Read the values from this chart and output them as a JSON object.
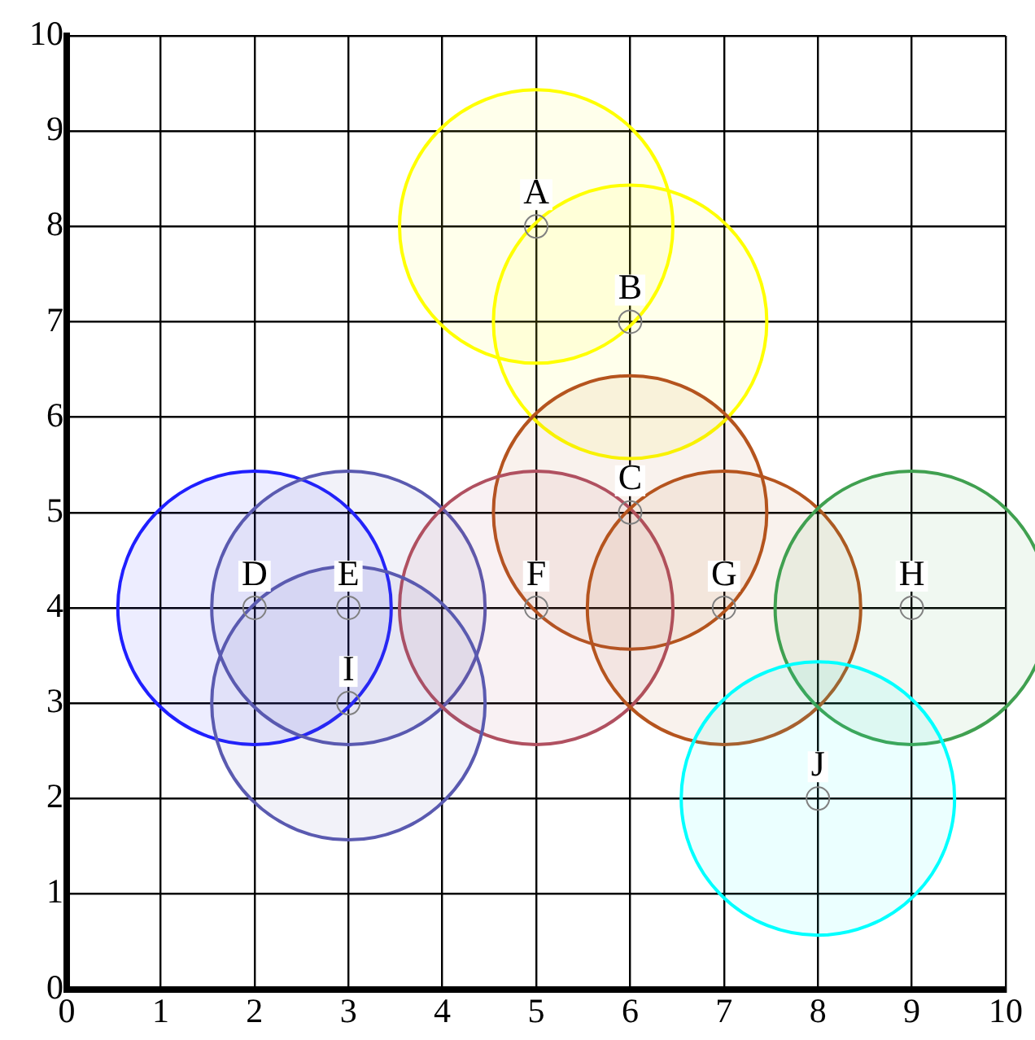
{
  "chart_data": {
    "type": "bubble",
    "xlim": [
      0,
      10
    ],
    "ylim": [
      0,
      10
    ],
    "xticks": [
      0,
      1,
      2,
      3,
      4,
      5,
      6,
      7,
      8,
      9,
      10
    ],
    "yticks": [
      0,
      1,
      2,
      3,
      4,
      5,
      6,
      7,
      8,
      9,
      10
    ],
    "grid": true,
    "legend": false,
    "marker": "circle",
    "series": [
      {
        "x": [
          5,
          6,
          6,
          2,
          3,
          5,
          7,
          9,
          3,
          8
        ],
        "values": [
          8,
          7,
          5,
          4,
          4,
          4,
          4,
          4,
          3,
          2
        ],
        "sizes": [
          1,
          1,
          1,
          1,
          1,
          1,
          1,
          1,
          1,
          1
        ],
        "colors": [
          "#ffff00",
          "#ffff00",
          "#b5541e",
          "#1f1fff",
          "#5a5ab0",
          "#b05060",
          "#b5541e",
          "#40a050",
          "#5a5ab0",
          "#00ffff"
        ]
      },
      {
        "type": "scatter",
        "x": [
          5,
          6,
          6,
          2,
          3,
          5,
          7,
          9,
          3,
          8
        ],
        "values": [
          8,
          7,
          5,
          4,
          4,
          4,
          4,
          4,
          3,
          2
        ],
        "color": "#808080"
      }
    ],
    "annotations": [
      {
        "text": "A",
        "x": 5,
        "y": 8
      },
      {
        "text": "B",
        "x": 6,
        "y": 7
      },
      {
        "text": "C",
        "x": 6,
        "y": 5
      },
      {
        "text": "D",
        "x": 2,
        "y": 4
      },
      {
        "text": "E",
        "x": 3,
        "y": 4
      },
      {
        "text": "F",
        "x": 5,
        "y": 4
      },
      {
        "text": "G",
        "x": 7,
        "y": 4
      },
      {
        "text": "H",
        "x": 9,
        "y": 4
      },
      {
        "text": "I",
        "x": 3,
        "y": 3
      },
      {
        "text": "J",
        "x": 8,
        "y": 2
      }
    ]
  }
}
